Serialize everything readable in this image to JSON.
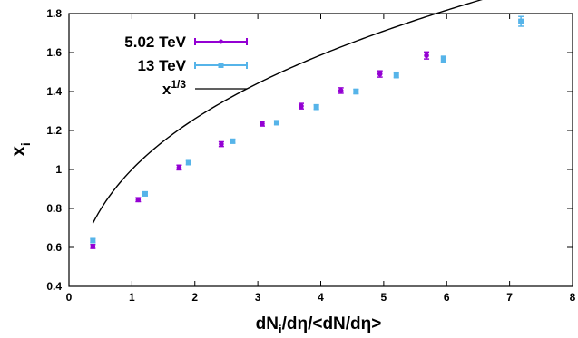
{
  "chart_data": {
    "type": "scatter",
    "xlabel": {
      "base": "dN",
      "sub": "i",
      "rest": "/dη/<dN/dη>"
    },
    "ylabel": {
      "base": "x",
      "sub": "i"
    },
    "xlim": [
      0,
      8
    ],
    "ylim": [
      0.4,
      1.8
    ],
    "x_ticks": [
      "0",
      "1",
      "2",
      "3",
      "4",
      "5",
      "6",
      "7",
      "8"
    ],
    "y_ticks": [
      "0.4",
      "0.6",
      "0.8",
      "1",
      "1.2",
      "1.4",
      "1.6",
      "1.8"
    ],
    "grid": false,
    "legend_position": "top-left",
    "series": [
      {
        "name": "5.02 TeV",
        "color": "#9400D3",
        "marker": "circle",
        "x": [
          0.38,
          1.1,
          1.75,
          2.42,
          3.07,
          3.69,
          4.32,
          4.94,
          5.68
        ],
        "y": [
          0.605,
          0.845,
          1.01,
          1.13,
          1.235,
          1.325,
          1.405,
          1.49,
          1.585
        ],
        "err": [
          0.01,
          0.01,
          0.012,
          0.012,
          0.012,
          0.014,
          0.014,
          0.016,
          0.018
        ]
      },
      {
        "name": "13 TeV",
        "color": "#56B4E9",
        "marker": "square",
        "x": [
          0.38,
          1.21,
          1.9,
          2.6,
          3.3,
          3.93,
          4.56,
          5.2,
          5.95,
          7.18
        ],
        "y": [
          0.635,
          0.875,
          1.035,
          1.145,
          1.24,
          1.32,
          1.4,
          1.485,
          1.565,
          1.76
        ],
        "err": [
          0.01,
          0.01,
          0.01,
          0.01,
          0.01,
          0.012,
          0.012,
          0.014,
          0.016,
          0.025
        ]
      },
      {
        "name": {
          "base": "x",
          "sup": "1/3"
        },
        "type": "line",
        "color": "#000000",
        "function": "x^(1/3)",
        "domain": [
          0.38,
          7.18
        ]
      }
    ]
  }
}
